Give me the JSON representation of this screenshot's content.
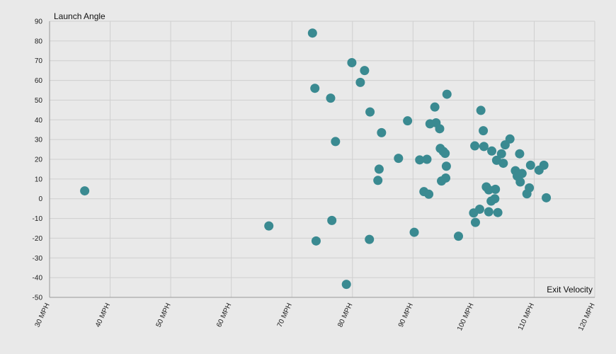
{
  "chart_data": {
    "type": "scatter",
    "xlabel": "Exit Velocity",
    "ylabel": "Launch Angle",
    "xlim": [
      30,
      120
    ],
    "ylim": [
      -50,
      90
    ],
    "xticks": [
      30,
      40,
      50,
      60,
      70,
      80,
      90,
      100,
      110,
      120
    ],
    "xtick_labels": [
      "30 MPH",
      "40 MPH",
      "50 MPH",
      "60 MPH",
      "70 MPH",
      "80 MPH",
      "90 MPH",
      "100 MPH",
      "110 MPH",
      "120 MPH"
    ],
    "yticks": [
      -50,
      -40,
      -30,
      -20,
      -10,
      0,
      10,
      20,
      30,
      40,
      50,
      60,
      70,
      80,
      90
    ],
    "ytick_labels": [
      "-50",
      "-40",
      "-30",
      "-20",
      "-10",
      "0",
      "10",
      "20",
      "30",
      "40",
      "50",
      "60",
      "70",
      "80",
      "90"
    ],
    "grid": true,
    "colors": {
      "point": "#3a8a91",
      "background": "#e9e9e9",
      "grid": "#cfcfcf",
      "axis": "#999999"
    },
    "points": [
      {
        "x": 35.8,
        "y": 4
      },
      {
        "x": 66.2,
        "y": -13.8
      },
      {
        "x": 73.4,
        "y": 84
      },
      {
        "x": 73.8,
        "y": 56
      },
      {
        "x": 74.0,
        "y": -21.4
      },
      {
        "x": 76.4,
        "y": 51
      },
      {
        "x": 76.6,
        "y": -11
      },
      {
        "x": 77.2,
        "y": 29
      },
      {
        "x": 79.0,
        "y": -43.4
      },
      {
        "x": 79.9,
        "y": 69
      },
      {
        "x": 81.3,
        "y": 59
      },
      {
        "x": 82.0,
        "y": 65
      },
      {
        "x": 82.8,
        "y": -20.6
      },
      {
        "x": 82.9,
        "y": 44
      },
      {
        "x": 84.2,
        "y": 9.3
      },
      {
        "x": 84.4,
        "y": 15
      },
      {
        "x": 84.8,
        "y": 33.5
      },
      {
        "x": 87.6,
        "y": 20.5
      },
      {
        "x": 89.1,
        "y": 39.5
      },
      {
        "x": 90.2,
        "y": -17
      },
      {
        "x": 91.1,
        "y": 19.7
      },
      {
        "x": 91.8,
        "y": 3.6
      },
      {
        "x": 92.3,
        "y": 20
      },
      {
        "x": 92.6,
        "y": 2.3
      },
      {
        "x": 92.8,
        "y": 38
      },
      {
        "x": 93.6,
        "y": 46.5
      },
      {
        "x": 93.8,
        "y": 38.5
      },
      {
        "x": 94.4,
        "y": 35.5
      },
      {
        "x": 94.5,
        "y": 25.5
      },
      {
        "x": 94.7,
        "y": 9
      },
      {
        "x": 95.0,
        "y": 24
      },
      {
        "x": 95.3,
        "y": 23
      },
      {
        "x": 95.4,
        "y": 10.5
      },
      {
        "x": 95.5,
        "y": 16.5
      },
      {
        "x": 95.6,
        "y": 53
      },
      {
        "x": 97.5,
        "y": -19
      },
      {
        "x": 100.0,
        "y": -7.2
      },
      {
        "x": 100.2,
        "y": 26.8
      },
      {
        "x": 100.3,
        "y": -12
      },
      {
        "x": 101.0,
        "y": -5.3
      },
      {
        "x": 101.2,
        "y": 44.8
      },
      {
        "x": 101.6,
        "y": 34.5
      },
      {
        "x": 101.7,
        "y": 26.5
      },
      {
        "x": 102.1,
        "y": 6
      },
      {
        "x": 102.5,
        "y": 4.5
      },
      {
        "x": 102.5,
        "y": -6.6
      },
      {
        "x": 102.9,
        "y": -1.2
      },
      {
        "x": 103.0,
        "y": 24.2
      },
      {
        "x": 103.5,
        "y": 0
      },
      {
        "x": 103.6,
        "y": 4.8
      },
      {
        "x": 103.8,
        "y": 19.5
      },
      {
        "x": 104.0,
        "y": -7
      },
      {
        "x": 104.6,
        "y": 22.8
      },
      {
        "x": 104.9,
        "y": 18
      },
      {
        "x": 105.2,
        "y": 27.3
      },
      {
        "x": 106.0,
        "y": 30.3
      },
      {
        "x": 106.9,
        "y": 14.2
      },
      {
        "x": 107.2,
        "y": 11.5
      },
      {
        "x": 107.6,
        "y": 22.8
      },
      {
        "x": 107.7,
        "y": 8.5
      },
      {
        "x": 108.0,
        "y": 12.8
      },
      {
        "x": 108.8,
        "y": 2.5
      },
      {
        "x": 109.2,
        "y": 5.5
      },
      {
        "x": 109.4,
        "y": 17
      },
      {
        "x": 110.8,
        "y": 14.5
      },
      {
        "x": 111.6,
        "y": 17
      },
      {
        "x": 112.0,
        "y": 0.5
      }
    ]
  }
}
